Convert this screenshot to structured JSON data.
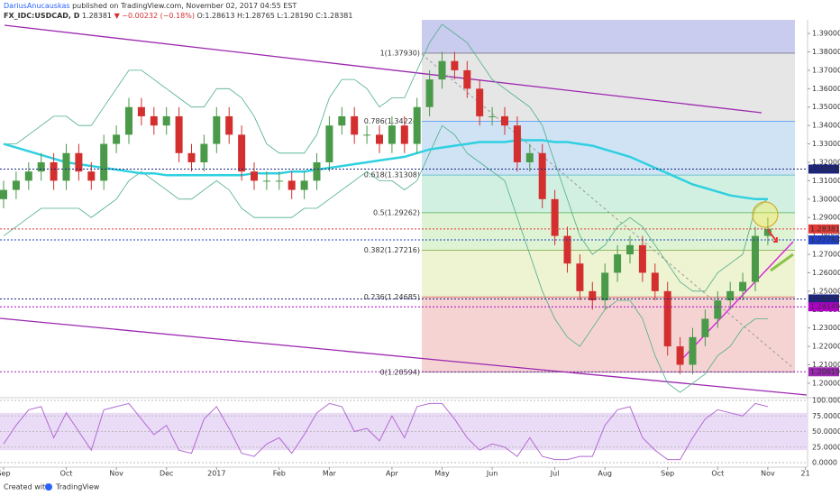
{
  "chart_data": {
    "type": "candlestick",
    "author": "DariusAnucauskas",
    "published": "published on TradingView.com, November 02, 2017 04:55 EST",
    "symbol": "FX_IDC:USDCAD, D",
    "last": "1.28381",
    "change": "▼ −0.00232 (−0.18%)",
    "ohlc_text": "O:1.28613 H:1.28765 L:1.28190 C:1.28381",
    "footer_text": "Created with",
    "footer_brand": "TradingView",
    "up_color": "#4a9a4a",
    "down_color": "#d32f2f",
    "categories": [
      "Sep",
      null,
      null,
      null,
      null,
      "Oct",
      null,
      null,
      null,
      "Nov",
      null,
      null,
      null,
      "Dec",
      null,
      null,
      null,
      "2017",
      null,
      null,
      null,
      null,
      "Feb",
      null,
      null,
      null,
      "Mar",
      null,
      null,
      null,
      null,
      "Apr",
      null,
      null,
      null,
      "May",
      null,
      null,
      null,
      "Jun",
      null,
      null,
      null,
      null,
      "Jul",
      null,
      null,
      null,
      "Aug",
      null,
      null,
      null,
      null,
      "Sep",
      null,
      null,
      null,
      "Oct",
      null,
      null,
      null,
      "Nov",
      null,
      null,
      "21"
    ],
    "open": [
      1.3,
      1.305,
      1.31,
      1.315,
      1.32,
      1.31,
      1.325,
      1.315,
      1.31,
      1.33,
      1.335,
      1.35,
      1.345,
      1.34,
      1.345,
      1.325,
      1.32,
      1.33,
      1.345,
      1.335,
      1.315,
      1.31,
      1.31,
      1.31,
      1.305,
      1.31,
      1.32,
      1.34,
      1.345,
      1.335,
      1.335,
      1.33,
      1.34,
      1.33,
      1.35,
      1.365,
      1.375,
      1.37,
      1.36,
      1.345,
      1.345,
      1.34,
      1.32,
      1.325,
      1.3,
      1.28,
      1.265,
      1.25,
      1.245,
      1.26,
      1.27,
      1.275,
      1.26,
      1.25,
      1.22,
      1.21,
      1.225,
      1.235,
      1.245,
      1.25,
      1.255,
      1.28,
      null,
      null,
      null
    ],
    "high": [
      1.31,
      1.315,
      1.32,
      1.325,
      1.325,
      1.33,
      1.33,
      1.32,
      1.335,
      1.34,
      1.355,
      1.355,
      1.35,
      1.35,
      1.35,
      1.33,
      1.335,
      1.35,
      1.35,
      1.34,
      1.32,
      1.315,
      1.315,
      1.315,
      1.315,
      1.325,
      1.345,
      1.35,
      1.35,
      1.34,
      1.34,
      1.345,
      1.345,
      1.355,
      1.37,
      1.38,
      1.38,
      1.375,
      1.365,
      1.35,
      1.35,
      1.345,
      1.33,
      1.33,
      1.305,
      1.285,
      1.27,
      1.255,
      1.265,
      1.275,
      1.28,
      1.28,
      1.265,
      1.255,
      1.225,
      1.23,
      1.24,
      1.25,
      1.255,
      1.26,
      1.285,
      1.29,
      null,
      null,
      null
    ],
    "low": [
      1.295,
      1.3,
      1.305,
      1.31,
      1.305,
      1.305,
      1.31,
      1.305,
      1.305,
      1.325,
      1.33,
      1.34,
      1.335,
      1.335,
      1.32,
      1.315,
      1.315,
      1.325,
      1.33,
      1.31,
      1.305,
      1.305,
      1.305,
      1.3,
      1.3,
      1.305,
      1.315,
      1.335,
      1.33,
      1.33,
      1.325,
      1.325,
      1.325,
      1.325,
      1.345,
      1.36,
      1.365,
      1.355,
      1.34,
      1.34,
      1.335,
      1.315,
      1.315,
      1.295,
      1.275,
      1.26,
      1.245,
      1.24,
      1.24,
      1.255,
      1.265,
      1.255,
      1.245,
      1.215,
      1.205,
      1.205,
      1.22,
      1.23,
      1.24,
      1.245,
      1.25,
      1.275,
      null,
      null,
      null
    ],
    "close": [
      1.305,
      1.31,
      1.315,
      1.32,
      1.31,
      1.325,
      1.315,
      1.31,
      1.33,
      1.335,
      1.35,
      1.345,
      1.34,
      1.345,
      1.325,
      1.32,
      1.33,
      1.345,
      1.335,
      1.315,
      1.31,
      1.31,
      1.31,
      1.305,
      1.31,
      1.32,
      1.34,
      1.345,
      1.335,
      1.335,
      1.33,
      1.34,
      1.33,
      1.35,
      1.365,
      1.375,
      1.37,
      1.36,
      1.345,
      1.345,
      1.34,
      1.32,
      1.325,
      1.3,
      1.28,
      1.265,
      1.25,
      1.245,
      1.26,
      1.27,
      1.275,
      1.26,
      1.25,
      1.22,
      1.21,
      1.225,
      1.235,
      1.245,
      1.25,
      1.255,
      1.28,
      1.2838,
      null,
      null,
      null
    ],
    "ma200": {
      "color": "#2fd0e0",
      "values": [
        1.33,
        1.328,
        1.326,
        1.324,
        1.322,
        1.32,
        1.319,
        1.318,
        1.317,
        1.316,
        1.315,
        1.314,
        1.314,
        1.313,
        1.313,
        1.313,
        1.313,
        1.313,
        1.313,
        1.313,
        1.314,
        1.314,
        1.314,
        1.315,
        1.315,
        1.316,
        1.317,
        1.318,
        1.319,
        1.32,
        1.321,
        1.322,
        1.323,
        1.325,
        1.327,
        1.328,
        1.329,
        1.33,
        1.331,
        1.331,
        1.331,
        1.332,
        1.332,
        1.332,
        1.331,
        1.331,
        1.33,
        1.329,
        1.327,
        1.325,
        1.323,
        1.32,
        1.317,
        1.314,
        1.311,
        1.308,
        1.306,
        1.304,
        1.302,
        1.301,
        1.3,
        1.3,
        null,
        null,
        null
      ]
    },
    "bb_upper": {
      "color": "#4caf86",
      "values": [
        1.33,
        1.33,
        1.335,
        1.34,
        1.345,
        1.345,
        1.34,
        1.34,
        1.35,
        1.36,
        1.37,
        1.37,
        1.365,
        1.36,
        1.355,
        1.35,
        1.35,
        1.36,
        1.36,
        1.355,
        1.345,
        1.33,
        1.325,
        1.325,
        1.325,
        1.335,
        1.355,
        1.365,
        1.365,
        1.36,
        1.35,
        1.355,
        1.355,
        1.37,
        1.385,
        1.395,
        1.39,
        1.385,
        1.375,
        1.365,
        1.36,
        1.355,
        1.35,
        1.34,
        1.32,
        1.3,
        1.28,
        1.27,
        1.275,
        1.285,
        1.29,
        1.285,
        1.275,
        1.265,
        1.255,
        1.25,
        1.25,
        1.26,
        1.265,
        1.27,
        1.295,
        1.3,
        null,
        null,
        null
      ]
    },
    "bb_lower": {
      "color": "#4caf86",
      "values": [
        1.28,
        1.285,
        1.29,
        1.295,
        1.295,
        1.295,
        1.295,
        1.29,
        1.295,
        1.3,
        1.31,
        1.315,
        1.31,
        1.305,
        1.3,
        1.3,
        1.305,
        1.31,
        1.305,
        1.295,
        1.29,
        1.29,
        1.29,
        1.29,
        1.295,
        1.295,
        1.3,
        1.305,
        1.31,
        1.315,
        1.31,
        1.31,
        1.305,
        1.31,
        1.325,
        1.34,
        1.335,
        1.325,
        1.32,
        1.315,
        1.31,
        1.29,
        1.27,
        1.25,
        1.235,
        1.225,
        1.22,
        1.23,
        1.24,
        1.245,
        1.245,
        1.235,
        1.215,
        1.2,
        1.195,
        1.2,
        1.205,
        1.215,
        1.22,
        1.23,
        1.235,
        1.235,
        null,
        null,
        null
      ]
    },
    "ylim": [
      1.1926,
      1.3974
    ],
    "yticks": [
      {
        "value": 1.2,
        "label": "1.20000"
      },
      {
        "value": 1.21,
        "label": "1.21000"
      },
      {
        "value": 1.22,
        "label": "1.22000"
      },
      {
        "value": 1.23,
        "label": "1.23000"
      },
      {
        "value": 1.24,
        "label": "1.24000"
      },
      {
        "value": 1.25,
        "label": "1.25000"
      },
      {
        "value": 1.26,
        "label": "1.26000"
      },
      {
        "value": 1.27,
        "label": "1.27000"
      },
      {
        "value": 1.28,
        "label": "1.28000"
      },
      {
        "value": 1.29,
        "label": "1.29000"
      },
      {
        "value": 1.3,
        "label": "1.30000"
      },
      {
        "value": 1.31,
        "label": "1.31000"
      },
      {
        "value": 1.32,
        "label": "1.32000"
      },
      {
        "value": 1.33,
        "label": "1.33000"
      },
      {
        "value": 1.34,
        "label": "1.34000"
      },
      {
        "value": 1.35,
        "label": "1.35000"
      },
      {
        "value": 1.36,
        "label": "1.36000"
      },
      {
        "value": 1.37,
        "label": "1.37000"
      },
      {
        "value": 1.38,
        "label": "1.38000"
      },
      {
        "value": 1.39,
        "label": "1.39000"
      }
    ],
    "fib_levels": [
      {
        "label": "1(1.37930)",
        "value": 1.3793,
        "color": "#787b86",
        "fill": "#e6e6e6"
      },
      {
        "label": "0.786(1.34224)",
        "value": 1.34224,
        "color": "#5b9cf6",
        "fill": "#cfe3f5"
      },
      {
        "label": "0.618(1.31308)",
        "value": 1.31308,
        "color": "#4fb3c9",
        "fill": "#d2f0e2"
      },
      {
        "label": "0.5(1.29262)",
        "value": 1.29262,
        "color": "#4caf50",
        "fill": "#def2d4"
      },
      {
        "label": "0.382(1.27216)",
        "value": 1.27216,
        "color": "#81a83c",
        "fill": "#eef3d2"
      },
      {
        "label": "0.236(1.24685)",
        "value": 1.24685,
        "color": "#d0574f",
        "fill": "#f5d3d3"
      },
      {
        "label": "0(1.20594)",
        "value": 1.20594,
        "color": "#787b86",
        "fill": null
      }
    ],
    "price_tags": [
      {
        "value": 1.31632,
        "label": "1.31632",
        "color": "#1a237e"
      },
      {
        "value": 1.28381,
        "label": "1.28381",
        "color": "#e53935"
      },
      {
        "value": 1.27783,
        "label": "1.27783",
        "color": "#1e40c8"
      },
      {
        "value": 1.24577,
        "label": "1.24577",
        "color": "#1a237e"
      },
      {
        "value": 1.24149,
        "label": "1.24149",
        "color": "#b000c8"
      },
      {
        "value": 1.20619,
        "label": "1.20619",
        "color": "#9c27b0"
      }
    ],
    "stoch": {
      "color": "#b36bd1",
      "ylim": [
        0,
        100
      ],
      "yticks": [
        {
          "value": 0,
          "label": "0.0000"
        },
        {
          "value": 25,
          "label": "25.0000"
        },
        {
          "value": 50,
          "label": "50.0000"
        },
        {
          "value": 75,
          "label": "75.0000"
        },
        {
          "value": 100,
          "label": "100.0000"
        }
      ],
      "values": [
        30,
        60,
        85,
        90,
        40,
        80,
        50,
        20,
        85,
        90,
        95,
        70,
        45,
        60,
        20,
        15,
        70,
        90,
        55,
        15,
        10,
        30,
        40,
        15,
        45,
        80,
        95,
        90,
        50,
        55,
        35,
        75,
        40,
        90,
        95,
        95,
        70,
        40,
        20,
        30,
        25,
        10,
        40,
        10,
        5,
        5,
        10,
        10,
        60,
        85,
        90,
        40,
        20,
        5,
        5,
        40,
        70,
        85,
        80,
        75,
        95,
        90,
        null,
        null,
        null
      ]
    }
  }
}
